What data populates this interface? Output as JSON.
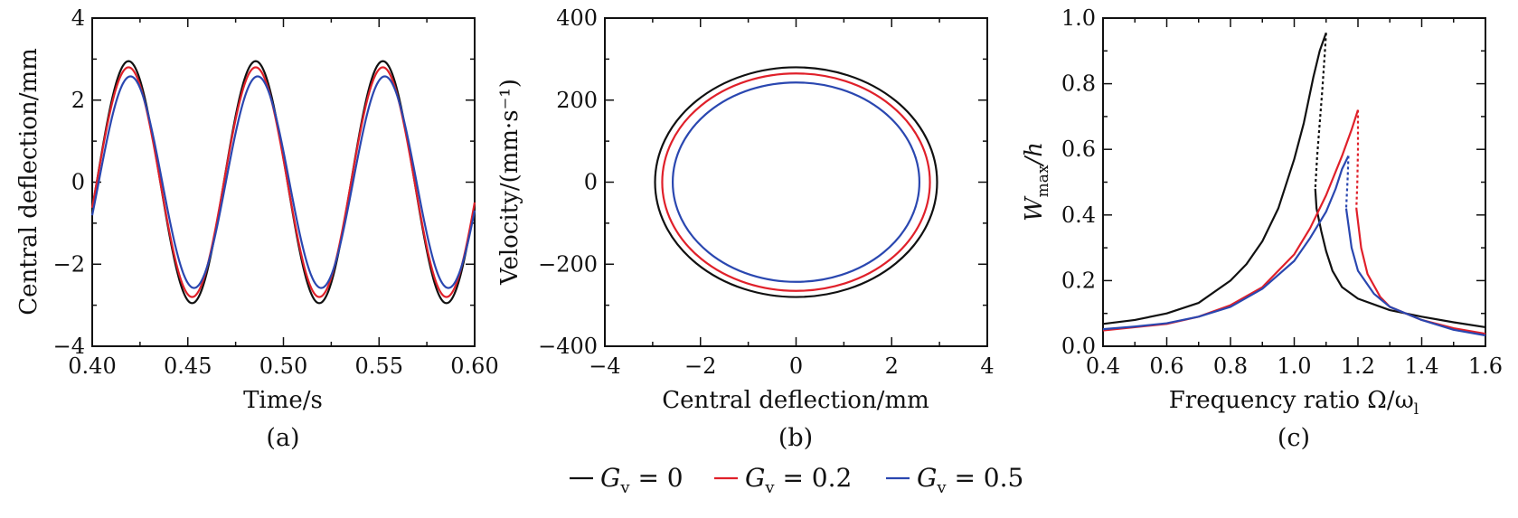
{
  "colors": {
    "Gv0": "#111111",
    "Gv02": "#e0202a",
    "Gv05": "#2a47b0"
  },
  "legend": [
    {
      "label": "G",
      "sub": "v",
      "rest": " = 0",
      "color": "#111111"
    },
    {
      "label": "G",
      "sub": "v",
      "rest": " = 0.2",
      "color": "#e0202a"
    },
    {
      "label": "G",
      "sub": "v",
      "rest": " = 0.5",
      "color": "#2a47b0"
    }
  ],
  "chart_data": [
    {
      "type": "line",
      "panel_label": "(a)",
      "xlabel": "Time/s",
      "ylabel": "Central deflection/mm",
      "xlim": [
        0.4,
        0.6
      ],
      "ylim": [
        -4,
        4
      ],
      "xticks": [
        "0.40",
        "0.45",
        "0.50",
        "0.55",
        "0.60"
      ],
      "yticks": [
        "−4",
        "−2",
        "0",
        "2",
        "4"
      ],
      "period": 0.0665,
      "series": [
        {
          "name": "G_v = 0",
          "amplitude": 2.95,
          "peaks_t": [
            0.419,
            0.485,
            0.552
          ],
          "troughs_t": [
            0.452,
            0.518,
            0.585
          ]
        },
        {
          "name": "G_v = 0.2",
          "amplitude": 2.8,
          "peaks_t": [
            0.419,
            0.485,
            0.552
          ],
          "troughs_t": [
            0.452,
            0.518,
            0.585
          ]
        },
        {
          "name": "G_v = 0.5",
          "amplitude": 2.58,
          "peaks_t": [
            0.42,
            0.486,
            0.553
          ],
          "troughs_t": [
            0.453,
            0.519,
            0.586
          ]
        }
      ]
    },
    {
      "type": "line",
      "panel_label": "(b)",
      "xlabel": "Central deflection/mm",
      "ylabel": "Velocity/(mm·s⁻¹)",
      "xlim": [
        -4,
        4
      ],
      "ylim": [
        -400,
        400
      ],
      "xticks": [
        "−4",
        "−2",
        "0",
        "2",
        "4"
      ],
      "yticks": [
        "−400",
        "−200",
        "0",
        "200",
        "400"
      ],
      "series": [
        {
          "name": "G_v = 0",
          "deflection_amplitude": 2.95,
          "velocity_amplitude": 280
        },
        {
          "name": "G_v = 0.2",
          "deflection_amplitude": 2.8,
          "velocity_amplitude": 265
        },
        {
          "name": "G_v = 0.5",
          "deflection_amplitude": 2.58,
          "velocity_amplitude": 243
        }
      ]
    },
    {
      "type": "line",
      "panel_label": "(c)",
      "xlabel": "Frequency ratio Ω/ω",
      "xlabel_sub": "l",
      "ylabel": "W",
      "ylabel_sub": "max",
      "ylabel_rest": "/h",
      "xlim": [
        0.4,
        1.6
      ],
      "ylim": [
        0.0,
        1.0
      ],
      "xticks": [
        "0.4",
        "0.6",
        "0.8",
        "1.0",
        "1.2",
        "1.4",
        "1.6"
      ],
      "yticks": [
        "0.0",
        "0.2",
        "0.4",
        "0.6",
        "0.8",
        "1.0"
      ],
      "series": [
        {
          "name": "G_v = 0",
          "upper": [
            [
              0.4,
              0.068
            ],
            [
              0.5,
              0.08
            ],
            [
              0.6,
              0.1
            ],
            [
              0.7,
              0.132
            ],
            [
              0.8,
              0.2
            ],
            [
              0.85,
              0.25
            ],
            [
              0.9,
              0.32
            ],
            [
              0.95,
              0.42
            ],
            [
              1.0,
              0.57
            ],
            [
              1.03,
              0.68
            ],
            [
              1.06,
              0.82
            ],
            [
              1.08,
              0.9
            ],
            [
              1.1,
              0.955
            ]
          ],
          "unstable": [
            [
              1.1,
              0.955
            ],
            [
              1.095,
              0.88
            ],
            [
              1.088,
              0.78
            ],
            [
              1.08,
              0.68
            ],
            [
              1.072,
              0.58
            ],
            [
              1.066,
              0.48
            ]
          ],
          "lower": [
            [
              1.066,
              0.48
            ],
            [
              1.07,
              0.42
            ],
            [
              1.085,
              0.35
            ],
            [
              1.1,
              0.29
            ],
            [
              1.12,
              0.23
            ],
            [
              1.15,
              0.18
            ],
            [
              1.2,
              0.145
            ],
            [
              1.3,
              0.11
            ],
            [
              1.4,
              0.09
            ],
            [
              1.5,
              0.073
            ],
            [
              1.6,
              0.058
            ]
          ]
        },
        {
          "name": "G_v = 0.2",
          "upper": [
            [
              0.4,
              0.048
            ],
            [
              0.5,
              0.058
            ],
            [
              0.6,
              0.068
            ],
            [
              0.7,
              0.09
            ],
            [
              0.8,
              0.125
            ],
            [
              0.9,
              0.18
            ],
            [
              1.0,
              0.28
            ],
            [
              1.05,
              0.36
            ],
            [
              1.1,
              0.46
            ],
            [
              1.15,
              0.58
            ],
            [
              1.18,
              0.66
            ],
            [
              1.2,
              0.72
            ]
          ],
          "unstable": [
            [
              1.2,
              0.72
            ],
            [
              1.2,
              0.6
            ],
            [
              1.198,
              0.5
            ],
            [
              1.195,
              0.42
            ]
          ],
          "lower": [
            [
              1.195,
              0.42
            ],
            [
              1.21,
              0.3
            ],
            [
              1.23,
              0.22
            ],
            [
              1.27,
              0.15
            ],
            [
              1.3,
              0.12
            ],
            [
              1.4,
              0.08
            ],
            [
              1.5,
              0.055
            ],
            [
              1.6,
              0.038
            ]
          ]
        },
        {
          "name": "G_v = 0.5",
          "upper": [
            [
              0.4,
              0.052
            ],
            [
              0.5,
              0.06
            ],
            [
              0.6,
              0.07
            ],
            [
              0.7,
              0.09
            ],
            [
              0.8,
              0.12
            ],
            [
              0.9,
              0.175
            ],
            [
              1.0,
              0.26
            ],
            [
              1.05,
              0.33
            ],
            [
              1.1,
              0.41
            ],
            [
              1.13,
              0.48
            ],
            [
              1.15,
              0.54
            ],
            [
              1.17,
              0.58
            ]
          ],
          "unstable": [
            [
              1.17,
              0.58
            ],
            [
              1.168,
              0.52
            ],
            [
              1.165,
              0.46
            ],
            [
              1.163,
              0.42
            ]
          ],
          "lower": [
            [
              1.163,
              0.42
            ],
            [
              1.18,
              0.3
            ],
            [
              1.2,
              0.23
            ],
            [
              1.25,
              0.16
            ],
            [
              1.3,
              0.12
            ],
            [
              1.4,
              0.08
            ],
            [
              1.5,
              0.05
            ],
            [
              1.6,
              0.033
            ]
          ]
        }
      ]
    }
  ]
}
